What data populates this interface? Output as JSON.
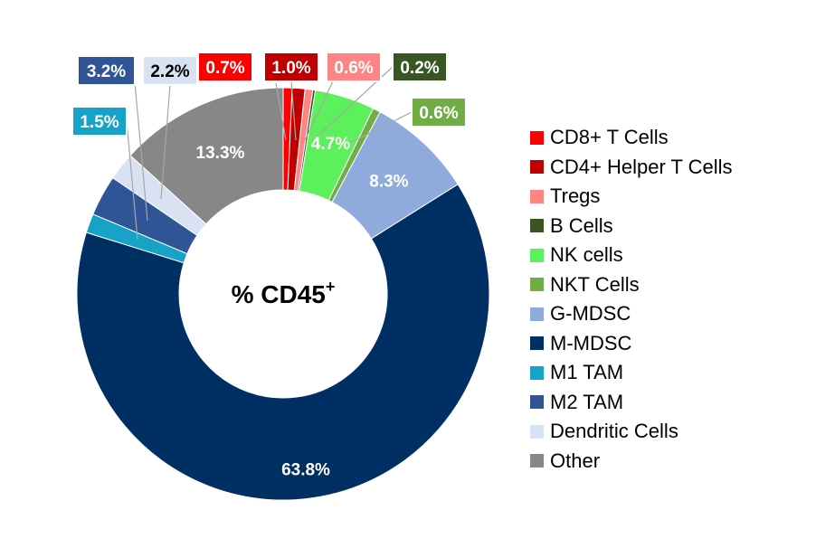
{
  "chart_data": {
    "type": "donut",
    "center_label": {
      "main": "% CD45",
      "sup": "+"
    },
    "legend_position": "right",
    "slices": [
      {
        "name": "CD8+ T Cells",
        "value": 0.7,
        "label": "0.7%",
        "color": "#ff0000",
        "text_color": "#ffffff"
      },
      {
        "name": "CD4+ Helper T Cells",
        "value": 1.0,
        "label": "1.0%",
        "color": "#c00000",
        "text_color": "#ffffff"
      },
      {
        "name": "Tregs",
        "value": 0.6,
        "label": "0.6%",
        "color": "#ff8585",
        "text_color": "#ffffff"
      },
      {
        "name": "B Cells",
        "value": 0.2,
        "label": "0.2%",
        "color": "#375623",
        "text_color": "#ffffff"
      },
      {
        "name": "NK cells",
        "value": 4.7,
        "label": "4.7%",
        "color": "#5cf05c",
        "text_color": "#ffffff"
      },
      {
        "name": "NKT Cells",
        "value": 0.6,
        "label": "0.6%",
        "color": "#70ad47",
        "text_color": "#ffffff"
      },
      {
        "name": "G-MDSC",
        "value": 8.3,
        "label": "8.3%",
        "color": "#8faadc",
        "text_color": "#ffffff"
      },
      {
        "name": "M-MDSC",
        "value": 63.8,
        "label": "63.8%",
        "color": "#002f63",
        "text_color": "#ffffff"
      },
      {
        "name": "M1 TAM",
        "value": 1.5,
        "label": "1.5%",
        "color": "#17a2c8",
        "text_color": "#ffffff"
      },
      {
        "name": "M2 TAM",
        "value": 3.2,
        "label": "3.2%",
        "color": "#2f5597",
        "text_color": "#ffffff"
      },
      {
        "name": "Dendritic Cells",
        "value": 2.2,
        "label": "2.2%",
        "color": "#d9e2f3",
        "text_color": "#000000"
      },
      {
        "name": "Other",
        "value": 13.3,
        "label": "13.3%",
        "color": "#878787",
        "text_color": "#ffffff"
      }
    ]
  }
}
